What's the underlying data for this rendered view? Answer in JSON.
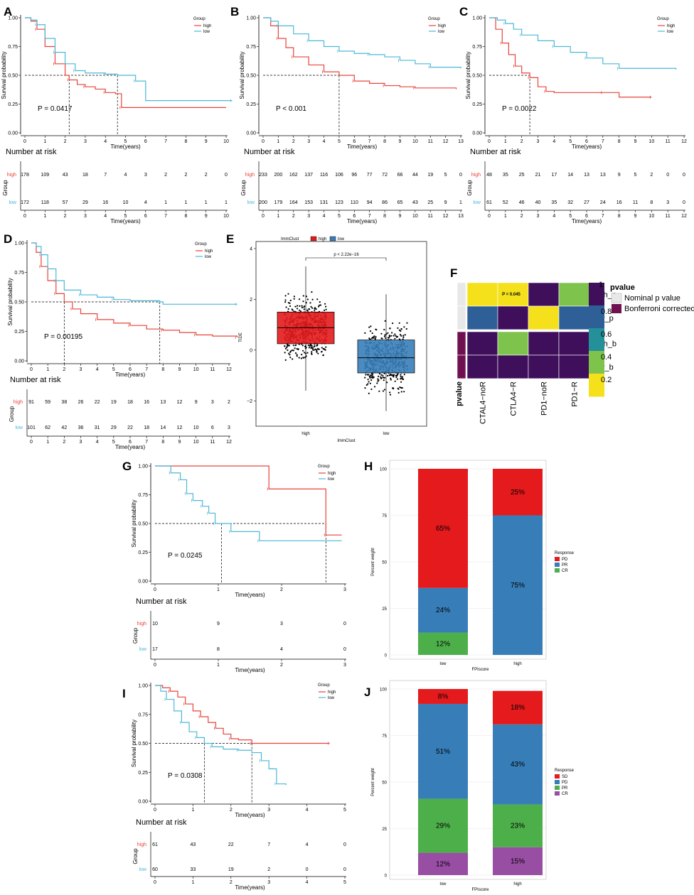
{
  "figure": {
    "colors": {
      "high": "#E8433A",
      "low": "#4CB8D8",
      "red": "#E41A1C",
      "blue": "#377EB8",
      "green": "#4DAF4A",
      "purple": "#984EA3",
      "heat_dark": "#3F0F5C",
      "heat_teal": "#23909A",
      "heat_green": "#7EC34C",
      "heat_yellow": "#F4E11C",
      "heat_blue": "#2E5F97",
      "heat_maroon": "#6F1150",
      "heat_grey": "#E8E8E8"
    },
    "common": {
      "ylabel": "Survival probability",
      "xlabel": "Time(years)",
      "legend_title": "Group",
      "high": "high",
      "low": "low",
      "risk_title": "Number at risk",
      "risk_ylabel": "Group",
      "yticks": [
        "0.00",
        "0.25",
        "0.50",
        "0.75",
        "1.00"
      ]
    }
  },
  "chart_data": [
    {
      "id": "A",
      "type": "line",
      "title": "A",
      "pvalue": "P = 0.0417",
      "xmax": 10,
      "medians": [
        2.2,
        4.6
      ],
      "xticks": [
        "0",
        "1",
        "2",
        "3",
        "4",
        "5",
        "6",
        "7",
        "8",
        "9",
        "10"
      ],
      "high": [
        [
          0,
          1
        ],
        [
          0.3,
          0.97
        ],
        [
          0.6,
          0.9
        ],
        [
          1,
          0.75
        ],
        [
          1.5,
          0.6
        ],
        [
          2,
          0.5
        ],
        [
          2.2,
          0.46
        ],
        [
          2.6,
          0.42
        ],
        [
          3,
          0.4
        ],
        [
          3.5,
          0.38
        ],
        [
          4,
          0.35
        ],
        [
          4.5,
          0.34
        ],
        [
          4.8,
          0.22
        ],
        [
          10,
          0.22
        ]
      ],
      "low": [
        [
          0,
          1
        ],
        [
          0.3,
          0.98
        ],
        [
          0.6,
          0.94
        ],
        [
          1,
          0.82
        ],
        [
          1.5,
          0.7
        ],
        [
          2,
          0.6
        ],
        [
          2.5,
          0.54
        ],
        [
          3,
          0.52
        ],
        [
          4,
          0.51
        ],
        [
          4.6,
          0.5
        ],
        [
          5.5,
          0.45
        ],
        [
          6,
          0.28
        ],
        [
          10.3,
          0.28
        ]
      ],
      "risk_x": [
        0,
        1,
        2,
        3,
        4,
        5,
        6,
        7,
        8,
        9,
        10
      ],
      "risk_high": [
        "178",
        "109",
        "43",
        "18",
        "7",
        "4",
        "3",
        "2",
        "2",
        "2",
        "0"
      ],
      "risk_low": [
        "172",
        "118",
        "57",
        "29",
        "16",
        "10",
        "4",
        "1",
        "1",
        "1",
        "1"
      ]
    },
    {
      "id": "B",
      "type": "line",
      "title": "B",
      "pvalue": "P < 0.001",
      "xmax": 13,
      "medians": [
        5
      ],
      "xticks": [
        "0",
        "1",
        "2",
        "3",
        "4",
        "5",
        "6",
        "7",
        "8",
        "9",
        "10",
        "11",
        "12",
        "13"
      ],
      "high": [
        [
          0,
          1
        ],
        [
          0.5,
          0.93
        ],
        [
          1,
          0.82
        ],
        [
          1.5,
          0.74
        ],
        [
          2,
          0.66
        ],
        [
          3,
          0.59
        ],
        [
          4,
          0.53
        ],
        [
          5,
          0.5
        ],
        [
          6,
          0.45
        ],
        [
          7,
          0.43
        ],
        [
          8,
          0.41
        ],
        [
          9,
          0.4
        ],
        [
          10,
          0.39
        ],
        [
          12.7,
          0.38
        ]
      ],
      "low": [
        [
          0,
          1
        ],
        [
          0.5,
          0.97
        ],
        [
          1,
          0.93
        ],
        [
          2,
          0.86
        ],
        [
          3,
          0.8
        ],
        [
          4,
          0.75
        ],
        [
          5,
          0.71
        ],
        [
          6,
          0.69
        ],
        [
          7,
          0.68
        ],
        [
          8,
          0.66
        ],
        [
          9,
          0.63
        ],
        [
          10,
          0.6
        ],
        [
          11,
          0.57
        ],
        [
          13,
          0.56
        ]
      ],
      "risk_x": [
        0,
        1,
        2,
        3,
        4,
        5,
        6,
        7,
        8,
        9,
        10,
        11,
        12,
        13
      ],
      "risk_high": [
        "233",
        "200",
        "162",
        "137",
        "116",
        "106",
        "96",
        "77",
        "72",
        "66",
        "44",
        "19",
        "5",
        "0"
      ],
      "risk_low": [
        "200",
        "179",
        "164",
        "153",
        "131",
        "123",
        "110",
        "94",
        "86",
        "65",
        "43",
        "25",
        "9",
        "1"
      ]
    },
    {
      "id": "C",
      "type": "line",
      "title": "C",
      "pvalue": "P = 0.0022",
      "xmax": 12,
      "medians": [
        2.5
      ],
      "xticks": [
        "0",
        "1",
        "2",
        "3",
        "4",
        "5",
        "6",
        "7",
        "8",
        "9",
        "10",
        "11",
        "12"
      ],
      "high": [
        [
          0,
          1
        ],
        [
          0.4,
          0.9
        ],
        [
          0.8,
          0.78
        ],
        [
          1.2,
          0.68
        ],
        [
          1.6,
          0.58
        ],
        [
          2,
          0.52
        ],
        [
          2.5,
          0.48
        ],
        [
          3,
          0.4
        ],
        [
          3.5,
          0.36
        ],
        [
          4,
          0.35
        ],
        [
          7,
          0.35
        ],
        [
          8,
          0.31
        ],
        [
          10,
          0.31
        ]
      ],
      "low": [
        [
          0,
          1
        ],
        [
          0.5,
          0.98
        ],
        [
          1,
          0.95
        ],
        [
          1.5,
          0.9
        ],
        [
          2,
          0.85
        ],
        [
          3,
          0.8
        ],
        [
          4,
          0.75
        ],
        [
          5,
          0.7
        ],
        [
          6,
          0.65
        ],
        [
          7,
          0.6
        ],
        [
          8,
          0.56
        ],
        [
          11.5,
          0.55
        ]
      ],
      "risk_x": [
        0,
        1,
        2,
        3,
        4,
        5,
        6,
        7,
        8,
        9,
        10,
        11,
        12
      ],
      "risk_high": [
        "48",
        "35",
        "25",
        "21",
        "17",
        "14",
        "13",
        "13",
        "9",
        "5",
        "2",
        "0",
        "0"
      ],
      "risk_low": [
        "61",
        "52",
        "46",
        "40",
        "35",
        "32",
        "27",
        "24",
        "16",
        "11",
        "8",
        "3",
        "0"
      ]
    },
    {
      "id": "D",
      "type": "line",
      "title": "D",
      "pvalue": "P = 0.00195",
      "xmax": 12,
      "medians": [
        2,
        7.8
      ],
      "xticks": [
        "0",
        "1",
        "2",
        "3",
        "4",
        "5",
        "6",
        "7",
        "8",
        "9",
        "10",
        "11",
        "12"
      ],
      "high": [
        [
          0,
          1
        ],
        [
          0.3,
          0.92
        ],
        [
          0.6,
          0.8
        ],
        [
          1,
          0.68
        ],
        [
          1.5,
          0.57
        ],
        [
          2,
          0.5
        ],
        [
          2.5,
          0.44
        ],
        [
          3,
          0.4
        ],
        [
          4,
          0.35
        ],
        [
          5,
          0.32
        ],
        [
          6,
          0.3
        ],
        [
          7,
          0.27
        ],
        [
          8,
          0.26
        ],
        [
          9,
          0.24
        ],
        [
          10,
          0.22
        ],
        [
          11,
          0.21
        ],
        [
          12.5,
          0.2
        ]
      ],
      "low": [
        [
          0,
          1
        ],
        [
          0.3,
          0.97
        ],
        [
          0.6,
          0.9
        ],
        [
          1,
          0.78
        ],
        [
          1.5,
          0.68
        ],
        [
          2,
          0.6
        ],
        [
          3,
          0.56
        ],
        [
          4,
          0.54
        ],
        [
          5,
          0.52
        ],
        [
          6,
          0.51
        ],
        [
          7.8,
          0.5
        ],
        [
          8,
          0.48
        ],
        [
          12.5,
          0.48
        ]
      ],
      "risk_x": [
        0,
        1,
        2,
        3,
        4,
        5,
        6,
        7,
        8,
        9,
        10,
        11,
        12
      ],
      "risk_high": [
        "91",
        "59",
        "38",
        "26",
        "22",
        "19",
        "18",
        "16",
        "13",
        "12",
        "9",
        "3",
        "2"
      ],
      "risk_low": [
        "101",
        "62",
        "42",
        "36",
        "31",
        "29",
        "22",
        "18",
        "14",
        "12",
        "10",
        "6",
        "3"
      ]
    },
    {
      "id": "E",
      "type": "box",
      "title": "E",
      "legend_title": "ImmClust",
      "ylabel": "TIDE",
      "xlabel": "ImmClust",
      "pvalue": "p < 2.22e−16",
      "categories": [
        "high",
        "low"
      ],
      "yticks": [
        "−2",
        "0",
        "2",
        "4"
      ],
      "ylim": [
        -3,
        4
      ],
      "boxes": [
        {
          "name": "high",
          "q1": 0.25,
          "median": 0.88,
          "q3": 1.5,
          "min": -1.6,
          "max": 3.3
        },
        {
          "name": "low",
          "q1": -0.9,
          "median": -0.3,
          "q3": 0.4,
          "min": -2.4,
          "max": 2.2
        }
      ]
    },
    {
      "id": "F",
      "type": "heatmap",
      "title": "F",
      "rows": [
        "high_p",
        "low_p",
        "high_b",
        "low_b"
      ],
      "cols": [
        "CTAL4−noR",
        "CTLA4−R",
        "PD1−noR",
        "PD1−R"
      ],
      "row_anno": [
        "Nominal p value",
        "Nominal p value",
        "Bonferroni corrected",
        "Bonferroni corrected"
      ],
      "annotation": "P = 0.045",
      "legend_title": "pvalue",
      "anno_label": "pvalue",
      "legend_ticks": [
        "1",
        "0.8",
        "0.6",
        "0.4",
        "0.2"
      ],
      "anno_legend": [
        "Nominal p value",
        "Bonferroni corrected"
      ],
      "values": [
        [
          0.15,
          0.15,
          0.95,
          0.45
        ],
        [
          0.8,
          0.95,
          0.15,
          0.8
        ],
        [
          0.95,
          0.45,
          0.95,
          0.95
        ],
        [
          0.95,
          0.95,
          0.95,
          0.95
        ]
      ]
    },
    {
      "id": "G",
      "type": "line",
      "title": "G",
      "pvalue": "P = 0.0245",
      "xmax": 3,
      "medians": [
        1.05,
        2.7
      ],
      "xticks": [
        "0",
        "1",
        "2",
        "3"
      ],
      "high": [
        [
          0,
          1
        ],
        [
          1.8,
          1
        ],
        [
          1.8,
          0.8
        ],
        [
          2.7,
          0.8
        ],
        [
          2.7,
          0.4
        ],
        [
          2.95,
          0.4
        ]
      ],
      "low": [
        [
          0,
          1
        ],
        [
          0.25,
          1
        ],
        [
          0.25,
          0.94
        ],
        [
          0.4,
          0.94
        ],
        [
          0.4,
          0.88
        ],
        [
          0.5,
          0.88
        ],
        [
          0.5,
          0.76
        ],
        [
          0.6,
          0.76
        ],
        [
          0.6,
          0.7
        ],
        [
          0.75,
          0.7
        ],
        [
          0.75,
          0.65
        ],
        [
          0.85,
          0.65
        ],
        [
          0.85,
          0.59
        ],
        [
          0.95,
          0.59
        ],
        [
          0.95,
          0.5
        ],
        [
          1.2,
          0.5
        ],
        [
          1.2,
          0.43
        ],
        [
          1.65,
          0.43
        ],
        [
          1.65,
          0.35
        ],
        [
          2.95,
          0.35
        ]
      ],
      "risk_x": [
        0,
        1,
        2,
        3
      ],
      "risk_high": [
        "10",
        "9",
        "3",
        "0"
      ],
      "risk_low": [
        "17",
        "8",
        "4",
        "0"
      ]
    },
    {
      "id": "H",
      "type": "bar",
      "title": "H",
      "xlabel": "FPIscore",
      "ylabel": "Percent weight",
      "legend_title": "Response",
      "categories": [
        "low",
        "high"
      ],
      "yticks": [
        "0",
        "25",
        "50",
        "75",
        "100"
      ],
      "ylim": [
        0,
        100
      ],
      "series": [
        {
          "name": "CR",
          "values": [
            12,
            0
          ],
          "labels": [
            "12%",
            ""
          ]
        },
        {
          "name": "PR",
          "values": [
            24,
            75
          ],
          "labels": [
            "24%",
            "75%"
          ]
        },
        {
          "name": "PD",
          "values": [
            65,
            25
          ],
          "labels": [
            "65%",
            "25%"
          ]
        }
      ],
      "legend": [
        "PD",
        "PR",
        "CR"
      ]
    },
    {
      "id": "I",
      "type": "line",
      "title": "I",
      "pvalue": "P = 0.0308",
      "xmax": 5,
      "medians": [
        1.3,
        2.55
      ],
      "xticks": [
        "0",
        "1",
        "2",
        "3",
        "4",
        "5"
      ],
      "high": [
        [
          0,
          1
        ],
        [
          0.2,
          0.98
        ],
        [
          0.4,
          0.95
        ],
        [
          0.6,
          0.9
        ],
        [
          0.8,
          0.84
        ],
        [
          1,
          0.78
        ],
        [
          1.2,
          0.73
        ],
        [
          1.4,
          0.68
        ],
        [
          1.6,
          0.63
        ],
        [
          1.8,
          0.58
        ],
        [
          2,
          0.54
        ],
        [
          2.2,
          0.53
        ],
        [
          2.55,
          0.5
        ],
        [
          3,
          0.5
        ],
        [
          4.6,
          0.5
        ]
      ],
      "low": [
        [
          0,
          1
        ],
        [
          0.15,
          0.95
        ],
        [
          0.3,
          0.88
        ],
        [
          0.5,
          0.78
        ],
        [
          0.7,
          0.68
        ],
        [
          0.9,
          0.6
        ],
        [
          1.1,
          0.55
        ],
        [
          1.3,
          0.5
        ],
        [
          1.5,
          0.47
        ],
        [
          1.8,
          0.45
        ],
        [
          2.2,
          0.44
        ],
        [
          2.55,
          0.42
        ],
        [
          2.8,
          0.35
        ],
        [
          3,
          0.28
        ],
        [
          3.2,
          0.15
        ],
        [
          3.45,
          0.14
        ]
      ],
      "risk_x": [
        0,
        1,
        2,
        3,
        4,
        5
      ],
      "risk_high": [
        "61",
        "43",
        "22",
        "7",
        "4",
        "0"
      ],
      "risk_low": [
        "60",
        "33",
        "19",
        "2",
        "0",
        "0"
      ]
    },
    {
      "id": "J",
      "type": "bar",
      "title": "J",
      "xlabel": "FPIscore",
      "ylabel": "Percent weight",
      "legend_title": "Response",
      "categories": [
        "low",
        "high"
      ],
      "yticks": [
        "0",
        "25",
        "50",
        "75",
        "100"
      ],
      "ylim": [
        0,
        100
      ],
      "series": [
        {
          "name": "CR",
          "values": [
            12,
            15
          ],
          "labels": [
            "12%",
            "15%"
          ]
        },
        {
          "name": "PR",
          "values": [
            29,
            23
          ],
          "labels": [
            "29%",
            "23%"
          ]
        },
        {
          "name": "PD",
          "values": [
            51,
            43
          ],
          "labels": [
            "51%",
            "43%"
          ]
        },
        {
          "name": "SD",
          "values": [
            8,
            18
          ],
          "labels": [
            "8%",
            "18%"
          ]
        }
      ],
      "legend": [
        "SD",
        "PD",
        "PR",
        "CR"
      ]
    }
  ]
}
